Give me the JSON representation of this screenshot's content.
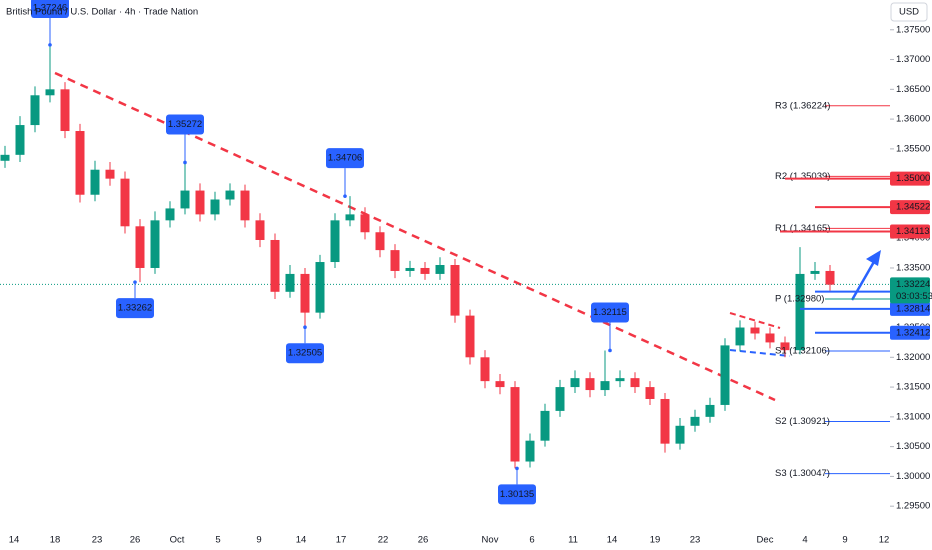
{
  "chart_data": {
    "type": "candlestick",
    "title": "British Pound / U.S. Dollar · 4h · Trade Nation",
    "currency": "USD",
    "up_color": "#089981",
    "down_color": "#f23645",
    "open": [
      1.353,
      1.354,
      1.359,
      1.364,
      1.365,
      1.358,
      1.3473,
      1.3515,
      1.35,
      1.342,
      1.335,
      1.343,
      1.345,
      1.348,
      1.344,
      1.3465,
      1.348,
      1.343,
      1.3397,
      1.331,
      1.334,
      1.3275,
      1.336,
      1.343,
      1.344,
      1.341,
      1.338,
      1.3345,
      1.335,
      1.334,
      1.3355,
      1.327,
      1.32,
      1.316,
      1.315,
      1.3025,
      1.306,
      1.311,
      1.315,
      1.3165,
      1.3145,
      1.316,
      1.3165,
      1.315,
      1.313,
      1.3055,
      1.3085,
      1.31,
      1.312,
      1.322,
      1.325,
      1.324,
      1.3225,
      1.3212,
      1.334,
      1.3345
    ],
    "high": [
      1.3555,
      1.3605,
      1.3655,
      1.37246,
      1.3662,
      1.3592,
      1.353,
      1.3528,
      1.3512,
      1.3432,
      1.3445,
      1.3462,
      1.35272,
      1.3492,
      1.3478,
      1.3492,
      1.349,
      1.3442,
      1.3408,
      1.3355,
      1.335,
      1.3372,
      1.3442,
      1.34706,
      1.3452,
      1.342,
      1.339,
      1.3362,
      1.336,
      1.3368,
      1.3365,
      1.328,
      1.3212,
      1.3172,
      1.316,
      1.3072,
      1.3122,
      1.3162,
      1.3178,
      1.3175,
      1.32115,
      1.3178,
      1.3175,
      1.316,
      1.314,
      1.3098,
      1.3112,
      1.3132,
      1.3232,
      1.3262,
      1.326,
      1.325,
      1.3235,
      1.3385,
      1.336,
      1.3355
    ],
    "low": [
      1.3518,
      1.3528,
      1.3578,
      1.3628,
      1.3568,
      1.346,
      1.3462,
      1.3488,
      1.3408,
      1.33262,
      1.334,
      1.3418,
      1.344,
      1.3428,
      1.343,
      1.3455,
      1.3418,
      1.3385,
      1.3298,
      1.33,
      1.32505,
      1.3265,
      1.335,
      1.342,
      1.3398,
      1.3368,
      1.3333,
      1.3335,
      1.333,
      1.333,
      1.3258,
      1.3188,
      1.3148,
      1.3138,
      1.30135,
      1.3015,
      1.305,
      1.31,
      1.314,
      1.3133,
      1.3135,
      1.315,
      1.314,
      1.312,
      1.304,
      1.3045,
      1.3075,
      1.309,
      1.311,
      1.321,
      1.323,
      1.3215,
      1.32,
      1.3205,
      1.333,
      1.3312
    ],
    "close": [
      1.354,
      1.359,
      1.364,
      1.365,
      1.358,
      1.3473,
      1.3515,
      1.35,
      1.342,
      1.335,
      1.343,
      1.345,
      1.348,
      1.344,
      1.3465,
      1.348,
      1.343,
      1.3397,
      1.331,
      1.334,
      1.3275,
      1.336,
      1.343,
      1.344,
      1.341,
      1.338,
      1.3345,
      1.335,
      1.334,
      1.3355,
      1.327,
      1.32,
      1.316,
      1.315,
      1.3025,
      1.306,
      1.311,
      1.315,
      1.3165,
      1.3145,
      1.316,
      1.3165,
      1.315,
      1.313,
      1.3055,
      1.3085,
      1.31,
      1.312,
      1.322,
      1.325,
      1.324,
      1.3225,
      1.3212,
      1.334,
      1.3345,
      1.3322
    ],
    "x_labels": [
      "14",
      "18",
      "23",
      "26",
      "Oct",
      "5",
      "9",
      "14",
      "17",
      "22",
      "26",
      "Nov",
      "6",
      "11",
      "14",
      "19",
      "23",
      "Dec",
      "4",
      "9",
      "12"
    ],
    "ylim": [
      1.291,
      1.38
    ],
    "yticks": [
      {
        "value": 1.295,
        "label": "1.29500"
      },
      {
        "value": 1.3,
        "label": "1.30000"
      },
      {
        "value": 1.305,
        "label": "1.30500"
      },
      {
        "value": 1.31,
        "label": "1.31000"
      },
      {
        "value": 1.315,
        "label": "1.31500"
      },
      {
        "value": 1.32,
        "label": "1.32000"
      },
      {
        "value": 1.325,
        "label": "1.32500"
      },
      {
        "value": 1.33,
        "label": "1.33000"
      },
      {
        "value": 1.335,
        "label": "1.33500"
      },
      {
        "value": 1.34,
        "label": "1.34000"
      },
      {
        "value": 1.345,
        "label": "1.34500"
      },
      {
        "value": 1.35,
        "label": "1.35000"
      },
      {
        "value": 1.355,
        "label": "1.35500"
      },
      {
        "value": 1.36,
        "label": "1.36000"
      },
      {
        "value": 1.365,
        "label": "1.36500"
      },
      {
        "value": 1.37,
        "label": "1.37000"
      },
      {
        "value": 1.375,
        "label": "1.37500"
      }
    ],
    "callouts": [
      1.37246,
      1.35272,
      1.34706,
      1.33262,
      1.32505,
      1.32115,
      1.30135
    ],
    "pivots": [
      {
        "label": "R3 (1.36224)",
        "value": 1.36224,
        "color": "#f23645"
      },
      {
        "label": "R2 (1.35039)",
        "value": 1.35039,
        "color": "#f23645"
      },
      {
        "label": "R1 (1.34165)",
        "value": 1.34165,
        "color": "#f23645"
      },
      {
        "label": "P (1.32980)",
        "value": 1.3298,
        "color": "#089981"
      },
      {
        "label": "S1 (1.32106)",
        "value": 1.32106,
        "color": "#2962ff"
      },
      {
        "label": "S2 (1.30921)",
        "value": 1.30921,
        "color": "#2962ff"
      },
      {
        "label": "S3 (1.30047)",
        "value": 1.30047,
        "color": "#2962ff"
      }
    ],
    "resistance_color": "#f23645",
    "resistance_levels": [
      {
        "value": 1.35,
        "label": "1.35000"
      },
      1.34522,
      1.34113
    ],
    "support_color": "#2962ff",
    "support_levels": [
      1.33103,
      1.32814,
      1.32412
    ],
    "current_price": {
      "value": 1.33224,
      "countdown": "03:03:53",
      "color": "#089981"
    }
  }
}
